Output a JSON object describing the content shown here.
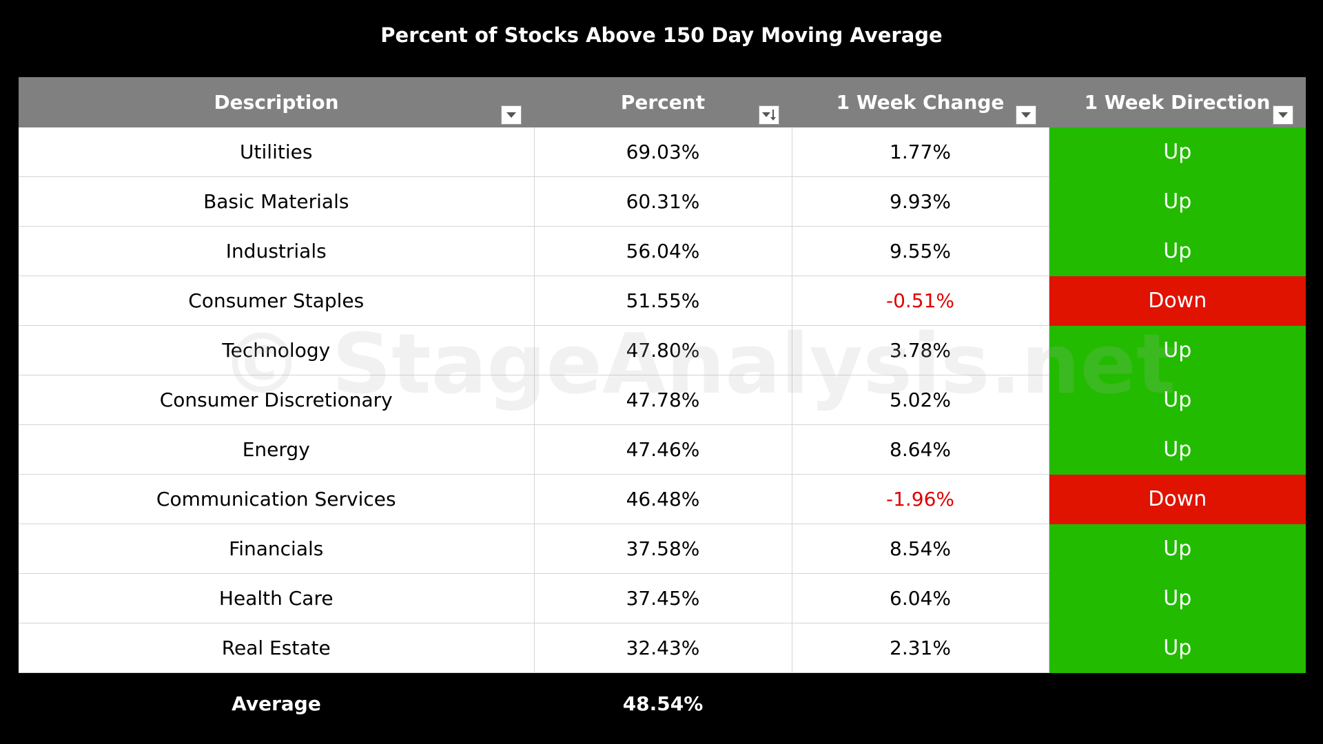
{
  "chart_data": {
    "type": "table",
    "title": "Percent of Stocks Above 150 Day Moving Average",
    "columns": [
      "Description",
      "Percent",
      "1 Week Change",
      "1 Week Direction"
    ],
    "rows": [
      {
        "description": "Utilities",
        "percent": "69.03%",
        "change": "1.77%",
        "direction": "Up"
      },
      {
        "description": "Basic Materials",
        "percent": "60.31%",
        "change": "9.93%",
        "direction": "Up"
      },
      {
        "description": "Industrials",
        "percent": "56.04%",
        "change": "9.55%",
        "direction": "Up"
      },
      {
        "description": "Consumer Staples",
        "percent": "51.55%",
        "change": "-0.51%",
        "direction": "Down"
      },
      {
        "description": "Technology",
        "percent": "47.80%",
        "change": "3.78%",
        "direction": "Up"
      },
      {
        "description": "Consumer Discretionary",
        "percent": "47.78%",
        "change": "5.02%",
        "direction": "Up"
      },
      {
        "description": "Energy",
        "percent": "47.46%",
        "change": "8.64%",
        "direction": "Up"
      },
      {
        "description": "Communication Services",
        "percent": "46.48%",
        "change": "-1.96%",
        "direction": "Down"
      },
      {
        "description": "Financials",
        "percent": "37.58%",
        "change": "8.54%",
        "direction": "Up"
      },
      {
        "description": "Health Care",
        "percent": "37.45%",
        "change": "6.04%",
        "direction": "Up"
      },
      {
        "description": "Real Estate",
        "percent": "32.43%",
        "change": "2.31%",
        "direction": "Up"
      }
    ],
    "footer": {
      "label": "Average",
      "percent": "48.54%"
    },
    "watermark": "© StageAnalysis.net",
    "colors": {
      "header_bg": "#808080",
      "up": "#22bb00",
      "down": "#e01200",
      "negative_text": "#e00000",
      "background": "#000000"
    }
  }
}
